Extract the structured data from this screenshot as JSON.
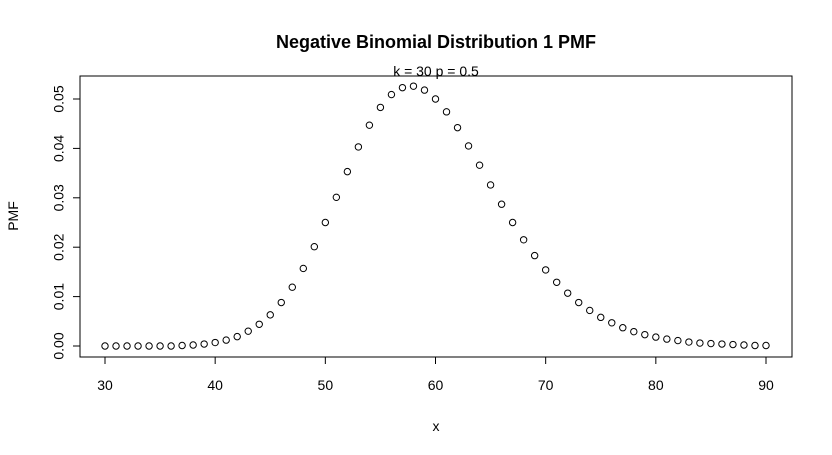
{
  "chart_data": {
    "type": "scatter",
    "title": "Negative Binomial Distribution 1 PMF",
    "subtitle": "k = 30  p = 0.5",
    "xlabel": "x",
    "ylabel": "PMF",
    "xlim": [
      30,
      90
    ],
    "ylim": [
      0,
      0.052
    ],
    "xticks": [
      "30",
      "40",
      "50",
      "60",
      "70",
      "80",
      "90"
    ],
    "yticks": [
      "0.00",
      "0.01",
      "0.02",
      "0.03",
      "0.04",
      "0.05"
    ],
    "grid": false,
    "series": [
      {
        "x": [
          30,
          31,
          32,
          33,
          34,
          35,
          36,
          37,
          38,
          39,
          40,
          41,
          42,
          43,
          44,
          45,
          46,
          47,
          48,
          49,
          50,
          51,
          52,
          53,
          54,
          55,
          56,
          57,
          58,
          59,
          60,
          61,
          62,
          63,
          64,
          65,
          66,
          67,
          68,
          69,
          70,
          71,
          72,
          73,
          74,
          75,
          76,
          77,
          78,
          79,
          80,
          81,
          82,
          83,
          84,
          85,
          86,
          87,
          88,
          89,
          90
        ],
        "y": [
          0.0,
          0.0,
          0.0,
          0.0,
          0.0,
          0.0,
          0.0,
          0.0001,
          0.0002,
          0.0004,
          0.0007,
          0.0012,
          0.0019,
          0.003,
          0.0044,
          0.0063,
          0.0088,
          0.0119,
          0.0157,
          0.0201,
          0.025,
          0.0301,
          0.0353,
          0.0403,
          0.0447,
          0.0483,
          0.0509,
          0.0523,
          0.0526,
          0.0518,
          0.05,
          0.0474,
          0.0442,
          0.0405,
          0.0366,
          0.0326,
          0.0287,
          0.025,
          0.0215,
          0.0183,
          0.0154,
          0.0129,
          0.0107,
          0.0088,
          0.0072,
          0.0058,
          0.0047,
          0.0037,
          0.0029,
          0.0023,
          0.0018,
          0.0014,
          0.0011,
          0.0008,
          0.0006,
          0.0005,
          0.0004,
          0.0003,
          0.0002,
          0.0001,
          0.0001
        ]
      }
    ]
  }
}
